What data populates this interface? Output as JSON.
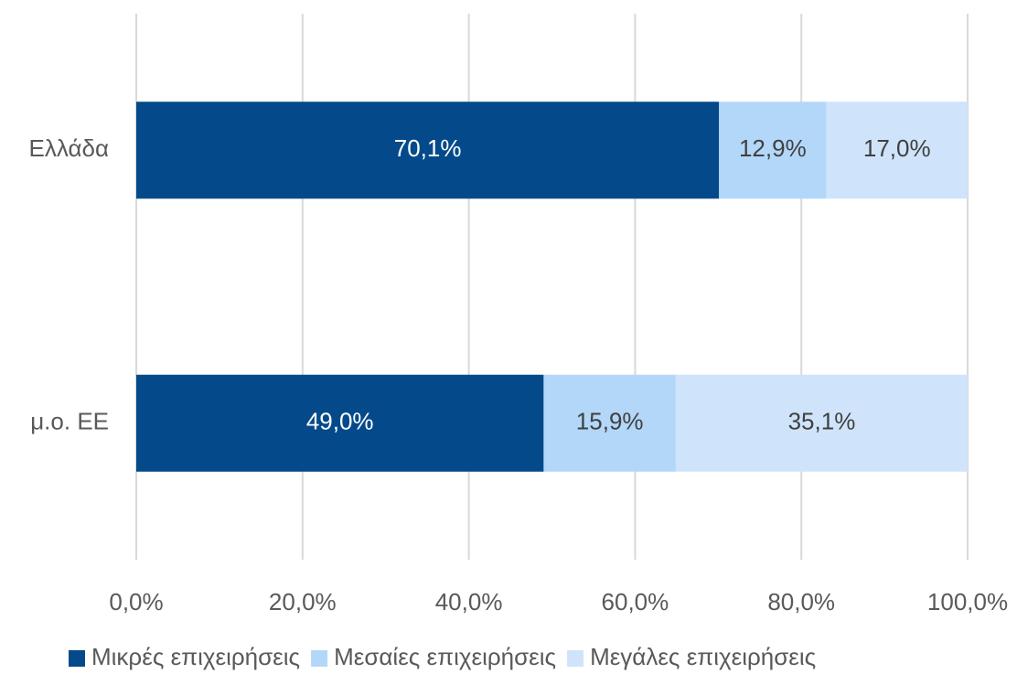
{
  "chart_data": {
    "type": "stacked_barh",
    "categories": [
      "Ελλάδα",
      "μ.ο. ΕΕ"
    ],
    "series": [
      {
        "name": "Μικρές επιχειρήσεις",
        "color": "#044a8a",
        "values": [
          70.1,
          49.0
        ],
        "value_labels": [
          "70,1%",
          "49,0%"
        ]
      },
      {
        "name": "Μεσαίες επιχειρήσεις",
        "color": "#b3d7f9",
        "values": [
          12.9,
          15.9
        ],
        "value_labels": [
          "12,9%",
          "15,9%"
        ]
      },
      {
        "name": "Μεγάλες επιχειρήσεις",
        "color": "#cfe4fb",
        "values": [
          17.0,
          35.1
        ],
        "value_labels": [
          "17,0%",
          "35,1%"
        ]
      }
    ],
    "xlim": [
      0,
      100
    ],
    "xticks": [
      {
        "value": 0,
        "label": "0,0%"
      },
      {
        "value": 20,
        "label": "20,0%"
      },
      {
        "value": 40,
        "label": "40,0%"
      },
      {
        "value": 60,
        "label": "60,0%"
      },
      {
        "value": 80,
        "label": "80,0%"
      },
      {
        "value": 100,
        "label": "100,0%"
      }
    ],
    "grid": true,
    "legend": "bottom"
  }
}
